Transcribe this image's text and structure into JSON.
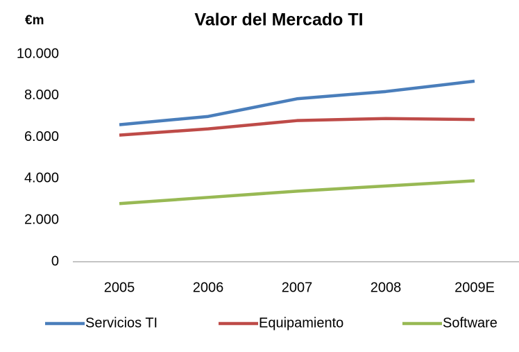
{
  "chart_data": {
    "type": "line",
    "title": "Valor del Mercado TI",
    "y_label": "€m",
    "categories": [
      "2005",
      "2006",
      "2007",
      "2008",
      "2009E"
    ],
    "series": [
      {
        "name": "Servicios TI",
        "color": "#4a7ebb",
        "values": [
          6600,
          7000,
          7850,
          8200,
          8700
        ]
      },
      {
        "name": "Equipamiento",
        "color": "#be4b48",
        "values": [
          6100,
          6400,
          6800,
          6900,
          6850
        ]
      },
      {
        "name": "Software",
        "color": "#98b954",
        "values": [
          2800,
          3100,
          3400,
          3650,
          3900
        ]
      }
    ],
    "ylim": [
      0,
      10000
    ],
    "yticks": [
      0,
      {
        "value": 2000,
        "label": "2.000"
      },
      {
        "value": 4000,
        "label": "4.000"
      },
      {
        "value": 6000,
        "label": "6.000"
      },
      {
        "value": 8000,
        "label": "8.000"
      },
      {
        "value": 10000,
        "label": "10.000"
      }
    ],
    "grid": false,
    "legend": "bottom"
  }
}
